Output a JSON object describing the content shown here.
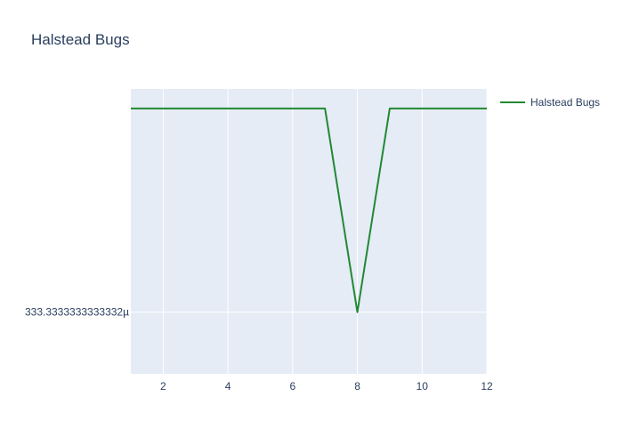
{
  "chart_data": {
    "type": "line",
    "title": "Halstead Bugs",
    "xlabel": "",
    "ylabel": "",
    "x": [
      1,
      2,
      3,
      4,
      5,
      6,
      7,
      8,
      9,
      10,
      11,
      12
    ],
    "series": [
      {
        "name": "Halstead Bugs",
        "values": [
          0.0003417,
          0.0003417,
          0.0003417,
          0.0003417,
          0.0003417,
          0.0003417,
          0.0003417,
          0.000333333,
          0.0003417,
          0.0003417,
          0.0003417,
          0.0003417
        ],
        "color": "#228833"
      }
    ],
    "xlim": [
      1,
      12
    ],
    "ylim": [
      0.0003308,
      0.0003425
    ],
    "x_ticks": [
      "2",
      "4",
      "6",
      "8",
      "10",
      "12"
    ],
    "y_tick_label": "333.3333333333332µ",
    "y_tick_value": 0.000333333,
    "grid": true,
    "legend_position": "top-right",
    "colors": {
      "plot_bg": "#e5ecf6",
      "grid": "#ffffff",
      "text": "#2a3f5f"
    }
  }
}
